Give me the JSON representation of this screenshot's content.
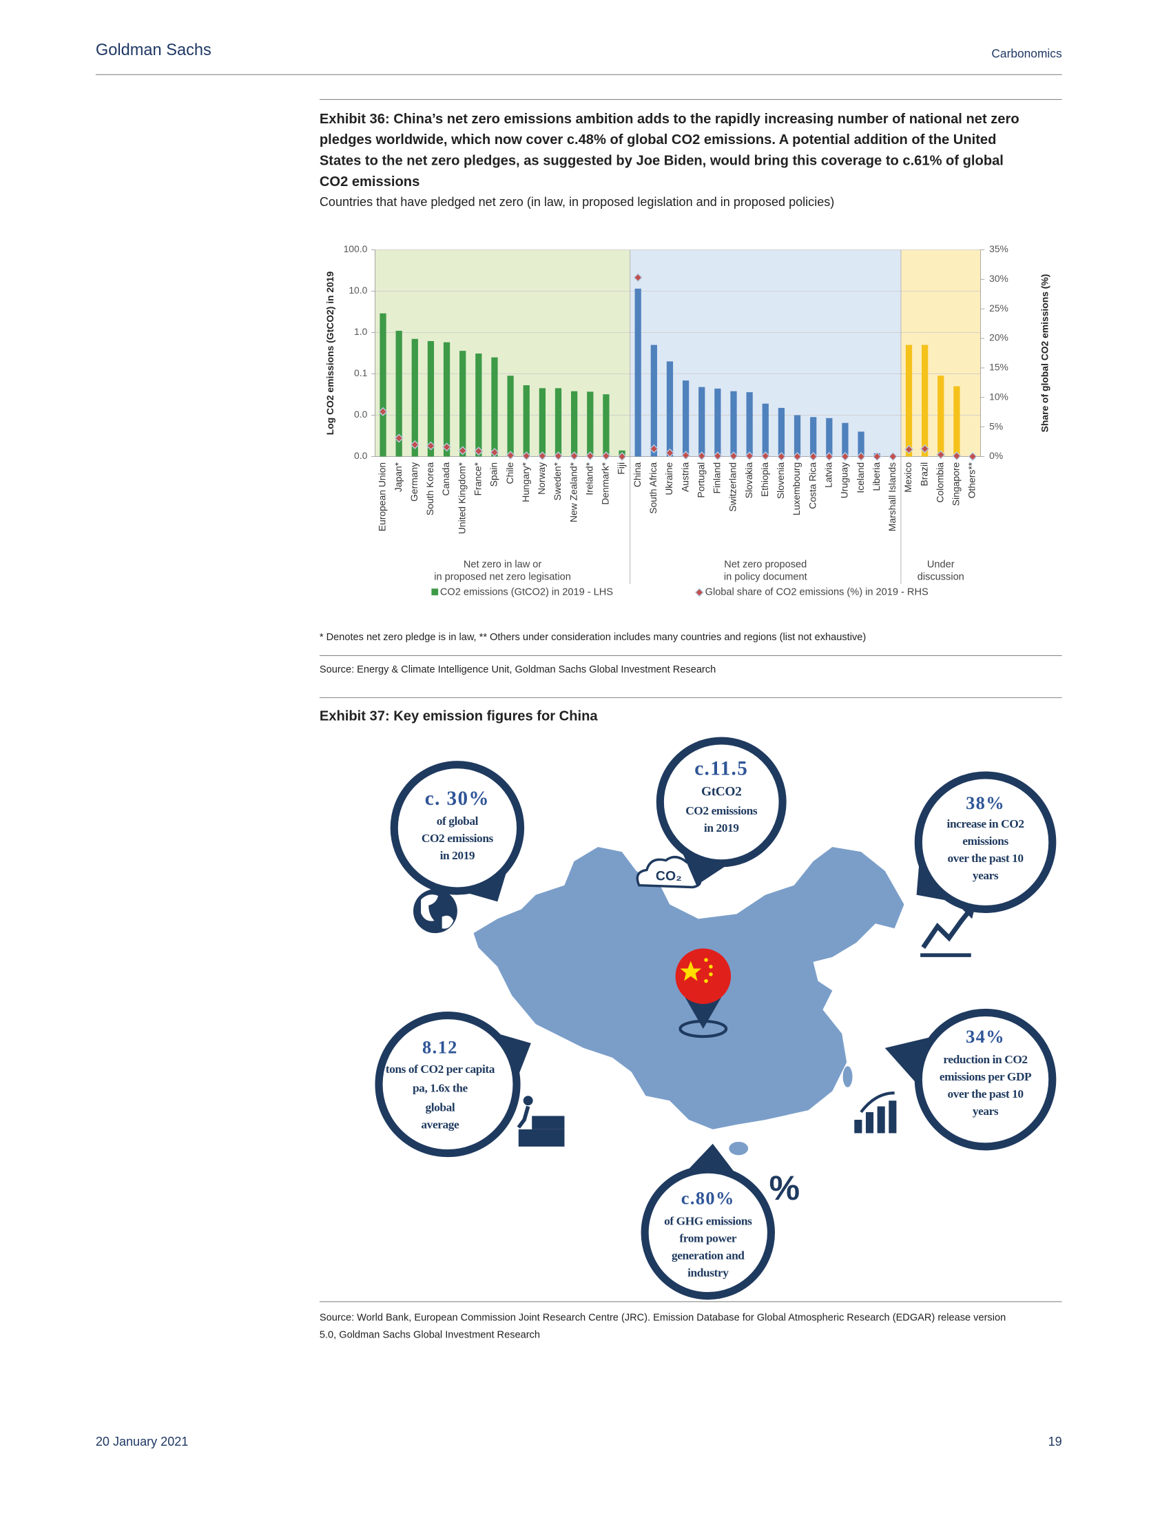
{
  "header": {
    "brand": "Goldman Sachs",
    "report": "Carbonomics"
  },
  "exhibit36": {
    "title_lines": [
      "Exhibit 36: China’s net zero emissions ambition adds to the rapidly increasing number of national net zero",
      "pledges worldwide, which now cover c.48% of global CO2 emissions. A potential addition of the United",
      "States to the net zero pledges, as suggested by Joe Biden, would bring this coverage to c.61% of global",
      "CO2 emissions"
    ],
    "subtitle": "Countries that have pledged net zero (in law, in proposed legislation and in proposed policies)",
    "note": "* Denotes net zero pledge is in law, ** Others under consideration includes many countries and regions (list not exhaustive)",
    "source": "Source: Energy & Climate Intelligence Unit, Goldman Sachs Global Investment Research"
  },
  "chart_data": {
    "type": "bar",
    "ylabel": "Log CO2 emissions (GtCO2) in 2019",
    "y2label": "Share of global CO2 emissions (%)",
    "yscale": "log",
    "ylim": [
      0.001,
      100
    ],
    "yticks": [
      {
        "value": 0.001,
        "label": "0.0"
      },
      {
        "value": 0.01,
        "label": "0.0"
      },
      {
        "value": 0.1,
        "label": "0.1"
      },
      {
        "value": 1,
        "label": "1.0"
      },
      {
        "value": 10,
        "label": "10.0"
      },
      {
        "value": 100,
        "label": "100.0"
      }
    ],
    "y2lim": [
      0,
      35
    ],
    "y2ticks": [
      {
        "value": 0,
        "label": "0%"
      },
      {
        "value": 5,
        "label": "5%"
      },
      {
        "value": 10,
        "label": "10%"
      },
      {
        "value": 15,
        "label": "15%"
      },
      {
        "value": 20,
        "label": "20%"
      },
      {
        "value": 25,
        "label": "25%"
      },
      {
        "value": 30,
        "label": "30%"
      },
      {
        "value": 35,
        "label": "35%"
      }
    ],
    "grid": true,
    "legend": "bottom",
    "series": [
      {
        "name": "CO2 emissions (GtCO2) in 2019 - LHS",
        "color": "#3d9a47"
      },
      {
        "name": "Global share of CO2 emissions (%) in 2019 - RHS",
        "color": "#c0504d",
        "axis": "y2"
      }
    ],
    "groups": [
      {
        "label": [
          "Net zero in law or",
          "in proposed net zero legisation"
        ],
        "background": "#e5eecf",
        "bar_color": "#3d9a47",
        "categories": [
          "European Union",
          "Japan*",
          "Germany",
          "South Korea",
          "Canada",
          "United Kingdom*",
          "France*",
          "Spain",
          "Chile",
          "Hungary*",
          "Norway",
          "Sweden*",
          "New Zealand*",
          "Ireland*",
          "Denmark*",
          "Fiji"
        ],
        "values": [
          2.9,
          1.1,
          0.7,
          0.62,
          0.58,
          0.36,
          0.31,
          0.25,
          0.09,
          0.053,
          0.045,
          0.045,
          0.038,
          0.037,
          0.032,
          0.0014
        ],
        "shares": [
          7.6,
          3.1,
          2.0,
          1.8,
          1.6,
          1.0,
          0.9,
          0.7,
          0.2,
          0.1,
          0.1,
          0.1,
          0.1,
          0.1,
          0.1,
          0.0
        ]
      },
      {
        "label": [
          "Net zero proposed",
          "in policy document"
        ],
        "background": "#dde8f5",
        "bar_color": "#4f81bd",
        "categories": [
          "China",
          "South Africa",
          "Ukraine",
          "Austria",
          "Portugal",
          "Finland",
          "Switzerland",
          "Slovakia",
          "Ethiopia",
          "Slovenia",
          "Luxembourg",
          "Costa Rica",
          "Latvia",
          "Uruguay",
          "Iceland",
          "Liberia",
          "Marshall Islands"
        ],
        "values": [
          11.5,
          0.5,
          0.2,
          0.069,
          0.048,
          0.044,
          0.038,
          0.036,
          0.019,
          0.015,
          0.01,
          0.009,
          0.0085,
          0.0065,
          0.004,
          0.0012,
          0.001
        ],
        "shares": [
          30.3,
          1.3,
          0.6,
          0.2,
          0.1,
          0.1,
          0.1,
          0.1,
          0.1,
          0.0,
          0.0,
          0.0,
          0.0,
          0.0,
          0.0,
          0.0,
          0.0
        ]
      },
      {
        "label": [
          "Under",
          "discussion"
        ],
        "background": "#fdeebd",
        "bar_color": "#f5c21b",
        "categories": [
          "Mexico",
          "Brazil",
          "Colombia",
          "Singapore",
          "Others**"
        ],
        "values": [
          0.5,
          0.5,
          0.09,
          0.05,
          null
        ],
        "shares": [
          1.2,
          1.3,
          0.3,
          0.1,
          0.0
        ]
      }
    ]
  },
  "exhibit37": {
    "title": "Exhibit 37: Key emission figures for China",
    "callouts": [
      {
        "lines": [
          "c. 30%",
          "of global",
          "CO2 emissions",
          "in 2019"
        ]
      },
      {
        "lines": [
          "c.11.5",
          "GtCO2",
          "CO2 emissions",
          "in 2019"
        ]
      },
      {
        "lines": [
          "38%",
          "increase in CO2",
          "emissions",
          "over the past 10",
          "years"
        ]
      },
      {
        "lines": [
          "8.12",
          "tons of CO2 per capita",
          "pa, 1.6x the",
          "global",
          "average"
        ]
      },
      {
        "lines": [
          "34%",
          "reduction in CO2",
          "emissions per GDP",
          "over the past 10",
          "years"
        ]
      },
      {
        "lines": [
          "c.80%",
          "of GHG emissions",
          "from power",
          "generation and",
          "industry"
        ]
      }
    ],
    "icon_co2": "CO₂",
    "icon_percent": "%",
    "source_lines": [
      "Source: World Bank, European Commission Joint Research Centre (JRC). Emission Database for Global Atmospheric Research (EDGAR) release version",
      "5.0, Goldman Sachs Global Investment Research"
    ]
  },
  "footer": {
    "date": "20 January 2021",
    "page": "19"
  }
}
